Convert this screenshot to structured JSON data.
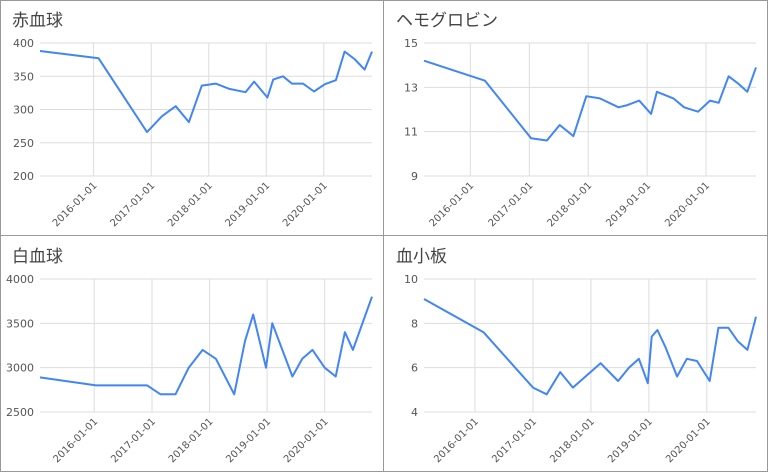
{
  "chart_data": [
    {
      "type": "line",
      "title": "赤血球",
      "color": "#4285f4",
      "grid": true,
      "x": [
        "2015-01-26",
        "2016-02-02",
        "2016-12-05",
        "2017-03-10",
        "2017-06-05",
        "2017-08-28",
        "2017-11-18",
        "2018-02-14",
        "2018-05-12",
        "2018-08-22",
        "2018-10-16",
        "2019-01-08",
        "2019-02-14",
        "2019-04-17",
        "2019-06-13",
        "2019-08-22",
        "2019-10-31",
        "2020-01-08",
        "2020-03-18",
        "2020-05-12",
        "2020-07-14",
        "2020-09-16",
        "2020-11-02"
      ],
      "values": [
        388,
        377,
        266,
        290,
        305,
        281,
        336,
        339,
        331,
        326,
        342,
        318,
        345,
        350,
        339,
        339,
        327,
        338,
        344,
        387,
        376,
        360,
        387
      ],
      "xlim": [
        "2015-01-26",
        "2020-11-02"
      ],
      "xticks": [
        "2016-01-01",
        "2017-01-01",
        "2018-01-01",
        "2019-01-01",
        "2020-01-01"
      ],
      "ylim": [
        200,
        400
      ],
      "yticks": [
        200,
        250,
        300,
        350,
        400
      ]
    },
    {
      "type": "line",
      "title": "ヘモグロビン",
      "color": "#4285f4",
      "grid": true,
      "x": [
        "2015-03-20",
        "2016-04-01",
        "2017-01-12",
        "2017-04-20",
        "2017-07-08",
        "2017-10-01",
        "2017-12-20",
        "2018-03-14",
        "2018-07-08",
        "2018-09-01",
        "2018-11-13",
        "2019-01-26",
        "2019-03-03",
        "2019-06-13",
        "2019-08-18",
        "2019-11-13",
        "2020-01-26",
        "2020-03-20",
        "2020-05-20",
        "2020-07-14",
        "2020-09-13",
        "2020-11-06"
      ],
      "values": [
        14.2,
        13.3,
        10.7,
        10.6,
        11.3,
        10.8,
        12.6,
        12.5,
        12.1,
        12.2,
        12.4,
        11.8,
        12.8,
        12.5,
        12.1,
        11.9,
        12.4,
        12.3,
        13.5,
        13.2,
        12.8,
        13.9
      ],
      "xlim": [
        "2015-03-20",
        "2020-11-06"
      ],
      "xticks": [
        "2016-01-01",
        "2017-01-01",
        "2018-01-01",
        "2019-01-01",
        "2020-01-01"
      ],
      "ylim": [
        9,
        15
      ],
      "yticks": [
        9,
        11,
        13,
        15
      ]
    },
    {
      "type": "line",
      "title": "白血球",
      "color": "#4285f4",
      "grid": true,
      "x": [
        "2015-01-22",
        "2016-01-13",
        "2016-12-02",
        "2017-02-24",
        "2017-05-30",
        "2017-08-22",
        "2017-11-18",
        "2018-02-10",
        "2018-06-06",
        "2018-08-14",
        "2018-10-05",
        "2018-12-25",
        "2019-02-03",
        "2019-06-10",
        "2019-08-12",
        "2019-10-16",
        "2020-01-01",
        "2020-03-11",
        "2020-05-08",
        "2020-06-28",
        "2020-10-27"
      ],
      "values": [
        2890,
        2800,
        2800,
        2700,
        2700,
        3000,
        3200,
        3100,
        2700,
        3300,
        3600,
        3000,
        3500,
        2900,
        3100,
        3200,
        3000,
        2900,
        3400,
        3200,
        3800
      ],
      "xlim": [
        "2015-01-22",
        "2020-10-27"
      ],
      "xticks": [
        "2016-01-01",
        "2017-01-01",
        "2018-01-01",
        "2019-01-01",
        "2020-01-01"
      ],
      "ylim": [
        2500,
        4000
      ],
      "yticks": [
        2500,
        3000,
        3500,
        4000
      ]
    },
    {
      "type": "line",
      "title": "血小板",
      "color": "#4285f4",
      "grid": true,
      "x": [
        "2015-02-14",
        "2016-02-24",
        "2017-01-01",
        "2017-03-28",
        "2017-06-21",
        "2017-09-09",
        "2018-03-03",
        "2018-06-21",
        "2018-08-28",
        "2018-10-30",
        "2018-12-25",
        "2019-01-19",
        "2019-02-24",
        "2019-04-17",
        "2019-06-28",
        "2019-08-28",
        "2019-10-31",
        "2020-01-19",
        "2020-03-14",
        "2020-05-16",
        "2020-07-14",
        "2020-09-13",
        "2020-11-06"
      ],
      "values": [
        9.1,
        7.6,
        5.1,
        4.8,
        5.8,
        5.1,
        6.2,
        5.4,
        6.0,
        6.4,
        5.3,
        7.4,
        7.7,
        6.9,
        5.6,
        6.4,
        6.3,
        5.4,
        7.8,
        7.8,
        7.2,
        6.8,
        8.3
      ],
      "xlim": [
        "2015-02-14",
        "2020-11-06"
      ],
      "xticks": [
        "2016-01-01",
        "2017-01-01",
        "2018-01-01",
        "2019-01-01",
        "2020-01-01"
      ],
      "ylim": [
        4,
        10
      ],
      "yticks": [
        4,
        6,
        8,
        10
      ]
    }
  ]
}
